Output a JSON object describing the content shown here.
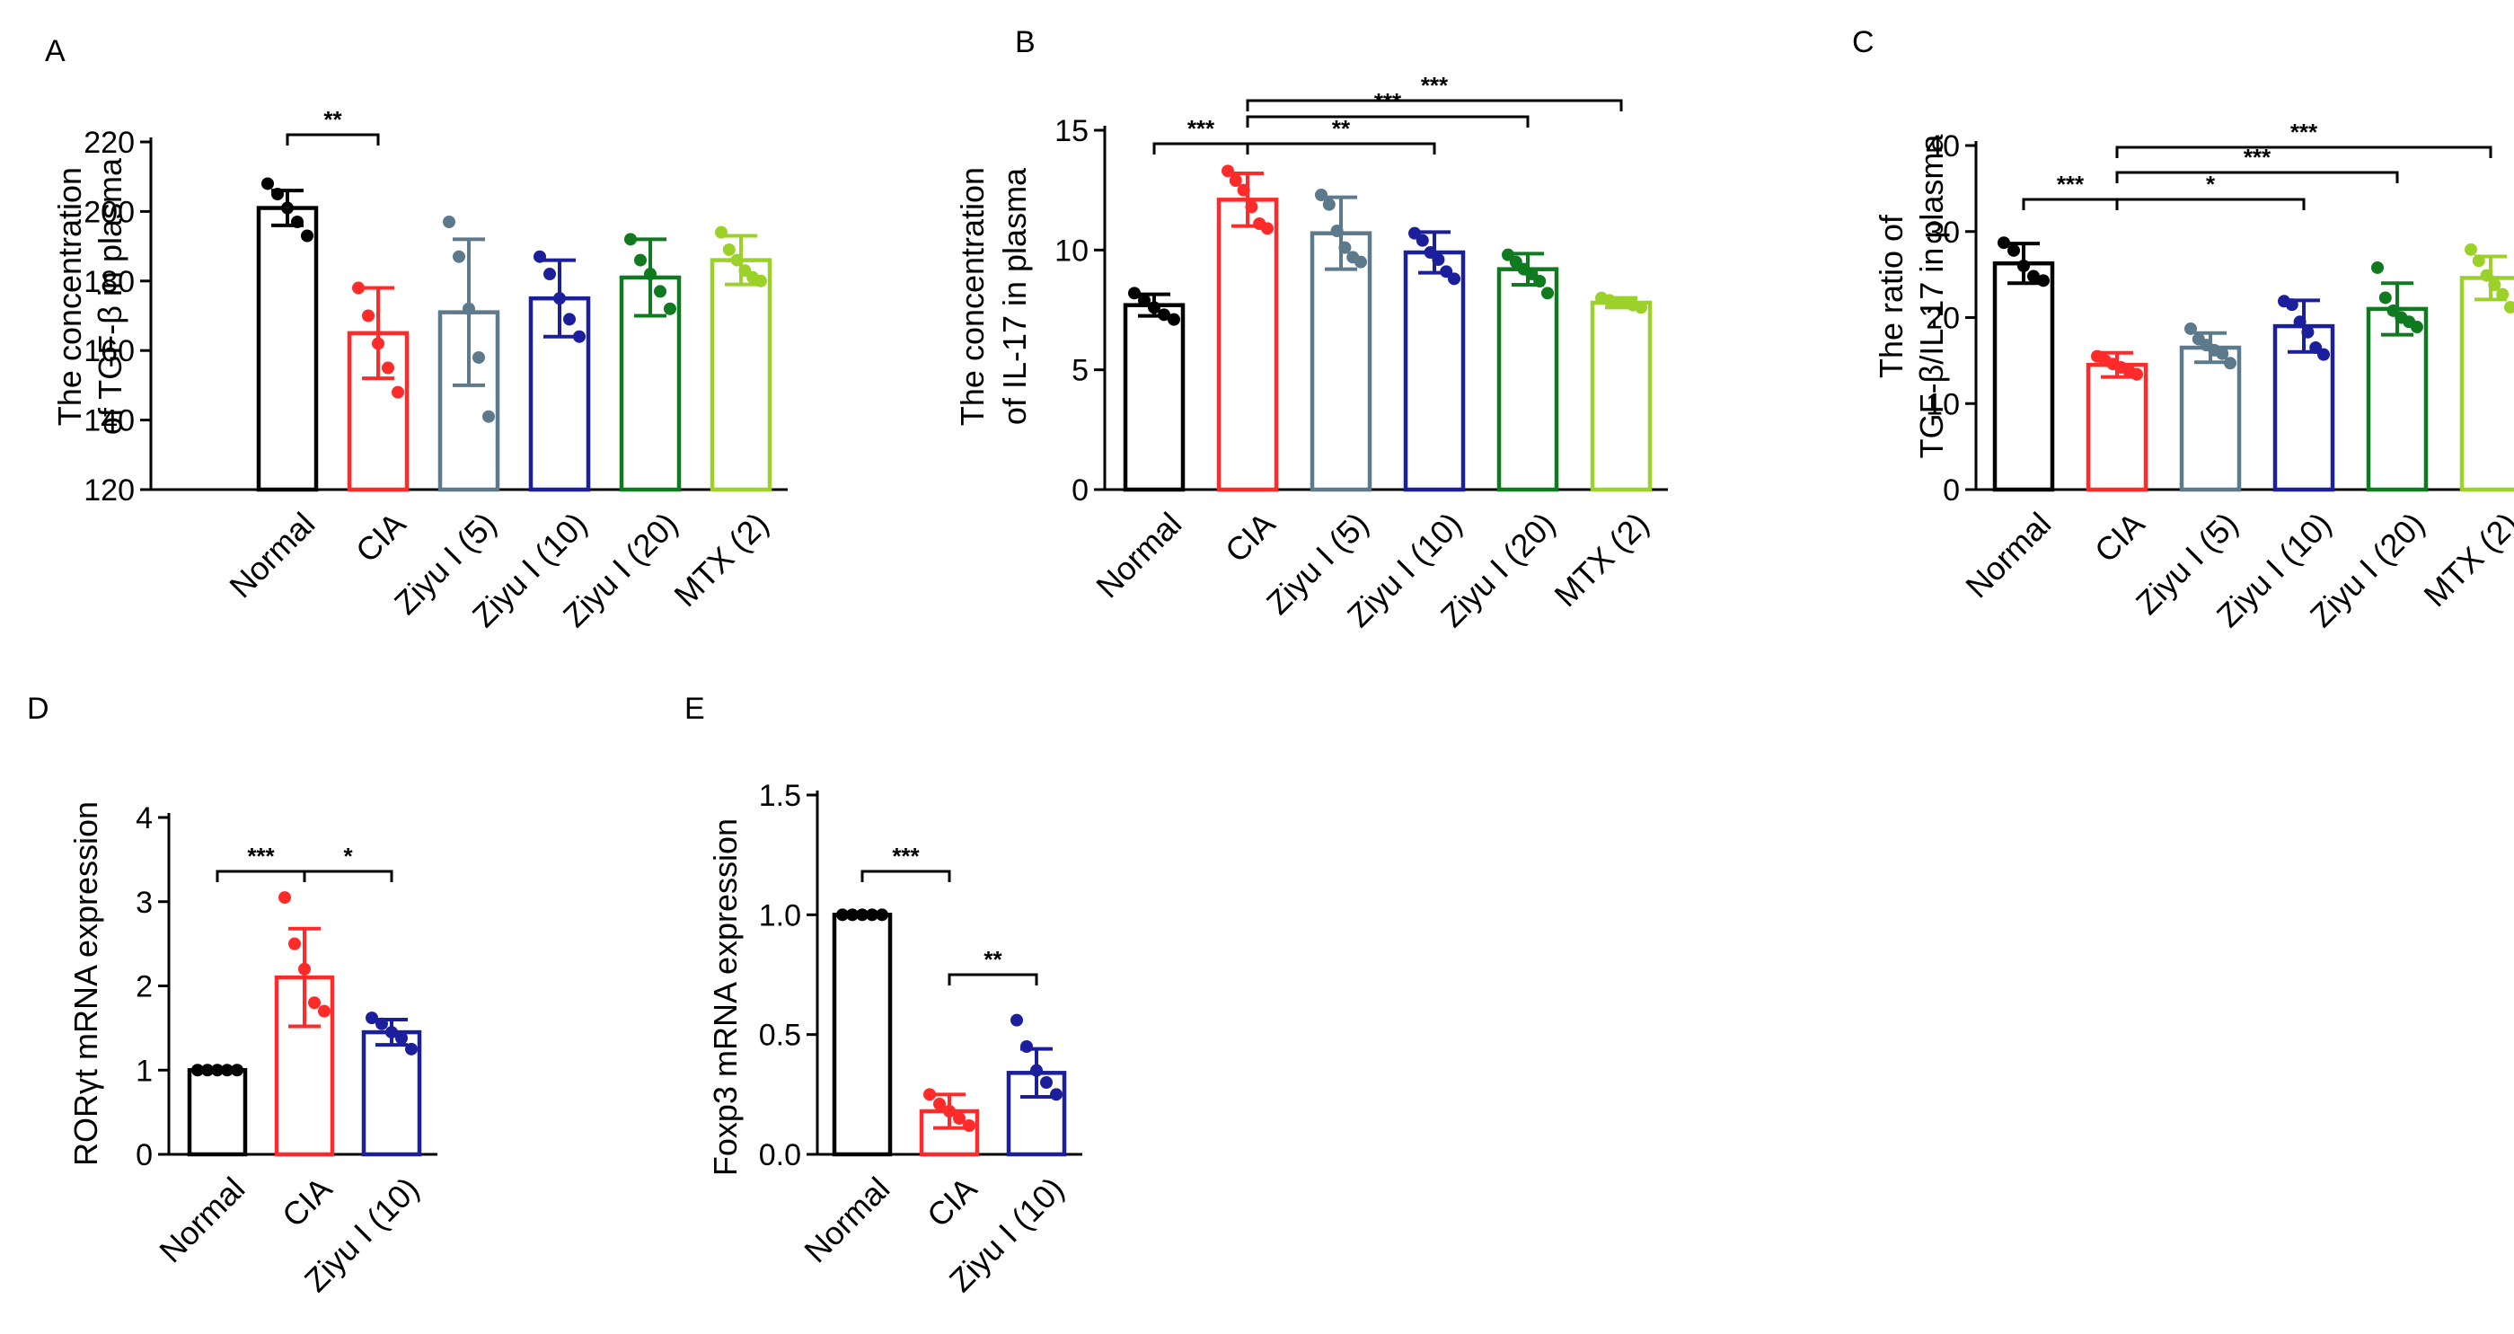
{
  "colors": {
    "Normal": "#000000",
    "CIA": "#ff2a2a",
    "Ziyu I (5)": "#5c7a8c",
    "Ziyu I (10)": "#1c1f9c",
    "Ziyu I (20)": "#0f7a1f",
    "MTX (2)": "#9cd12a"
  },
  "chart_data": [
    {
      "id": "A",
      "panel_label": "A",
      "type": "bar",
      "ylabel": [
        "The concentration",
        "of TGF-β in plasma"
      ],
      "categories": [
        "Normal",
        "CIA",
        "Ziyu I (5)",
        "Ziyu I (10)",
        "Ziyu I (20)",
        "MTX (2)"
      ],
      "ylim": [
        120,
        220
      ],
      "yticks": [
        120,
        140,
        160,
        180,
        200,
        220
      ],
      "ytick_labels": [
        "120",
        "140",
        "160",
        "180",
        "200",
        "220"
      ],
      "values": [
        201,
        165,
        171,
        175,
        181,
        186
      ],
      "sd": [
        5,
        13,
        21,
        11,
        11,
        7
      ],
      "points": [
        [
          208,
          205,
          201,
          197,
          193
        ],
        [
          178,
          170,
          162,
          155,
          148
        ],
        [
          197,
          187,
          172,
          158,
          141
        ],
        [
          187,
          182,
          175,
          169,
          164
        ],
        [
          192,
          186,
          182,
          177,
          172
        ],
        [
          194,
          189,
          186,
          183,
          181,
          180
        ]
      ],
      "significance": [
        {
          "from": 0,
          "to": 1,
          "label": "**",
          "level": 0
        }
      ]
    },
    {
      "id": "B",
      "panel_label": "B",
      "type": "bar",
      "ylabel": [
        "The concentration",
        "of  IL-17 in plasma"
      ],
      "categories": [
        "Normal",
        "CIA",
        "Ziyu I (5)",
        "Ziyu I (10)",
        "Ziyu I (20)",
        "MTX (2)"
      ],
      "ylim": [
        0,
        15
      ],
      "yticks": [
        0,
        5,
        10,
        15
      ],
      "ytick_labels": [
        "0",
        "5",
        "10",
        "15"
      ],
      "values": [
        7.7,
        12.1,
        10.7,
        9.9,
        9.2,
        7.8
      ],
      "sd": [
        0.45,
        1.1,
        1.5,
        0.85,
        0.65,
        0.2
      ],
      "points": [
        [
          8.2,
          7.9,
          7.6,
          7.3,
          7.1
        ],
        [
          13.3,
          12.9,
          12.5,
          11.8,
          11.1,
          10.9
        ],
        [
          12.3,
          11.9,
          10.8,
          10.1,
          9.7,
          9.5
        ],
        [
          10.7,
          10.4,
          9.9,
          9.6,
          9.1,
          8.8
        ],
        [
          9.8,
          9.5,
          9.2,
          9.0,
          8.7,
          8.2
        ],
        [
          8.0,
          7.9,
          7.8,
          7.8,
          7.7,
          7.6
        ]
      ],
      "significance": [
        {
          "from": 0,
          "to": 1,
          "label": "***",
          "level": 0
        },
        {
          "from": 1,
          "to": 3,
          "label": "**",
          "level": 0
        },
        {
          "from": 1,
          "to": 4,
          "label": "***",
          "level": 1
        },
        {
          "from": 1,
          "to": 5,
          "label": "***",
          "level": 2
        }
      ]
    },
    {
      "id": "C",
      "panel_label": "C",
      "type": "bar",
      "ylabel": [
        "The ratio of",
        "TGF-β/IL-17 in plasma"
      ],
      "categories": [
        "Normal",
        "CIA",
        "Ziyu I (5)",
        "Ziyu I (10)",
        "Ziyu I (20)",
        "MTX (2)"
      ],
      "ylim": [
        0,
        40
      ],
      "yticks": [
        0,
        10,
        20,
        30,
        40
      ],
      "ytick_labels": [
        "0",
        "10",
        "20",
        "30",
        "40"
      ],
      "values": [
        26.3,
        14.5,
        16.5,
        19.0,
        21.0,
        24.6
      ],
      "sd": [
        2.3,
        1.4,
        1.7,
        3.0,
        3.0,
        2.5
      ],
      "points": [
        [
          28.7,
          27.8,
          26.0,
          24.8,
          24.3
        ],
        [
          15.5,
          15.0,
          14.6,
          14.2,
          13.8,
          13.4
        ],
        [
          18.7,
          17.5,
          16.8,
          16.2,
          15.8,
          14.7
        ],
        [
          21.9,
          21.5,
          19.5,
          18.3,
          16.5,
          15.7
        ],
        [
          25.8,
          22.3,
          20.8,
          20.0,
          19.5,
          18.9
        ],
        [
          27.9,
          26.6,
          24.9,
          23.8,
          22.7,
          21.2
        ]
      ],
      "significance": [
        {
          "from": 0,
          "to": 1,
          "label": "***",
          "level": 0
        },
        {
          "from": 1,
          "to": 3,
          "label": "*",
          "level": 0
        },
        {
          "from": 1,
          "to": 4,
          "label": "***",
          "level": 1
        },
        {
          "from": 1,
          "to": 5,
          "label": "***",
          "level": 2
        }
      ]
    },
    {
      "id": "D",
      "panel_label": "D",
      "type": "bar",
      "ylabel": [
        "RORγt mRNA expression"
      ],
      "categories": [
        "Normal",
        "CIA",
        "Ziyu I (10)"
      ],
      "ylim": [
        0,
        4
      ],
      "yticks": [
        0,
        1,
        2,
        3,
        4
      ],
      "ytick_labels": [
        "0",
        "1",
        "2",
        "3",
        "4"
      ],
      "values": [
        1.0,
        2.1,
        1.45
      ],
      "sd": [
        0.0,
        0.58,
        0.15
      ],
      "points": [
        [
          1.0,
          1.0,
          1.0,
          1.0,
          1.0
        ],
        [
          3.05,
          2.5,
          2.2,
          1.8,
          1.7
        ],
        [
          1.62,
          1.55,
          1.45,
          1.38,
          1.25
        ]
      ],
      "significance": [
        {
          "from": 0,
          "to": 1,
          "label": "***",
          "level": 0
        },
        {
          "from": 1,
          "to": 2,
          "label": "*",
          "level": 0
        }
      ]
    },
    {
      "id": "E",
      "panel_label": "E",
      "type": "bar",
      "ylabel": [
        "Foxp3 mRNA expression"
      ],
      "categories": [
        "Normal",
        "CIA",
        "Ziyu I (10)"
      ],
      "ylim": [
        0,
        1.5
      ],
      "yticks": [
        0,
        0.5,
        1.0,
        1.5
      ],
      "ytick_labels": [
        "0.0",
        "0.5",
        "1.0",
        "1.5"
      ],
      "values": [
        1.0,
        0.18,
        0.34
      ],
      "sd": [
        0.0,
        0.07,
        0.1
      ],
      "points": [
        [
          1.0,
          1.0,
          1.0,
          1.0,
          1.0
        ],
        [
          0.25,
          0.21,
          0.18,
          0.15,
          0.12
        ],
        [
          0.56,
          0.45,
          0.35,
          0.3,
          0.25
        ]
      ],
      "significance": [
        {
          "from": 0,
          "to": 1,
          "label": "***",
          "level": 0
        },
        {
          "from": 1,
          "to": 2,
          "label": "**",
          "level": 0
        }
      ]
    }
  ]
}
